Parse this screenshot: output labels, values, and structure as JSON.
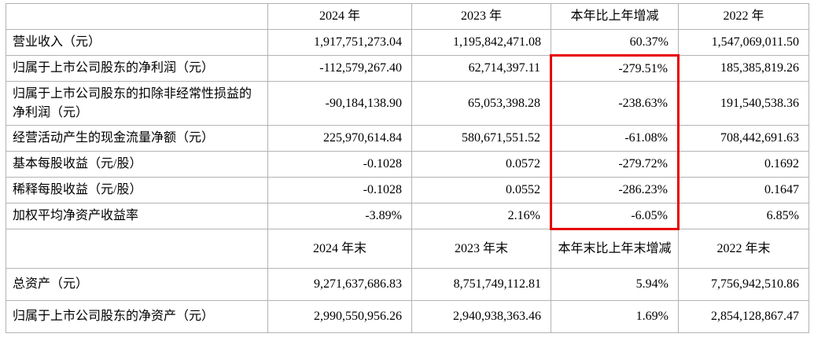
{
  "colors": {
    "highlight": "#e60000",
    "border": "#b3b3b3",
    "text": "#000000"
  },
  "section1": {
    "headers": {
      "col1": "",
      "col2": "2024 年",
      "col3": "2023 年",
      "col4": "本年比上年增减",
      "col5": "2022 年"
    },
    "rows": [
      {
        "label": "营业收入（元）",
        "y2024": "1,917,751,273.04",
        "y2023": "1,195,842,471.08",
        "change": "60.37%",
        "y2022": "1,547,069,011.50"
      },
      {
        "label": "归属于上市公司股东的净利润（元）",
        "y2024": "-112,579,267.40",
        "y2023": "62,714,397.11",
        "change": "-279.51%",
        "y2022": "185,385,819.26"
      },
      {
        "label": "归属于上市公司股东的扣除非经常性损益的净利润（元）",
        "y2024": "-90,184,138.90",
        "y2023": "65,053,398.28",
        "change": "-238.63%",
        "y2022": "191,540,538.36"
      },
      {
        "label": "经营活动产生的现金流量净额（元）",
        "y2024": "225,970,614.84",
        "y2023": "580,671,551.52",
        "change": "-61.08%",
        "y2022": "708,442,691.63"
      },
      {
        "label": "基本每股收益（元/股）",
        "y2024": "-0.1028",
        "y2023": "0.0572",
        "change": "-279.72%",
        "y2022": "0.1692"
      },
      {
        "label": "稀释每股收益（元/股）",
        "y2024": "-0.1028",
        "y2023": "0.0552",
        "change": "-286.23%",
        "y2022": "0.1647"
      },
      {
        "label": "加权平均净资产收益率",
        "y2024": "-3.89%",
        "y2023": "2.16%",
        "change": "-6.05%",
        "y2022": "6.85%"
      }
    ]
  },
  "section2": {
    "headers": {
      "col1": "",
      "col2": "2024 年末",
      "col3": "2023 年末",
      "col4": "本年末比上年末增减",
      "col5": "2022 年末"
    },
    "rows": [
      {
        "label": "总资产（元）",
        "y2024": "9,271,637,686.83",
        "y2023": "8,751,749,112.81",
        "change": "5.94%",
        "y2022": "7,756,942,510.86"
      },
      {
        "label": "归属于上市公司股东的净资产（元）",
        "y2024": "2,990,550,956.26",
        "y2023": "2,940,938,363.46",
        "change": "1.69%",
        "y2022": "2,854,128,867.47"
      }
    ]
  }
}
